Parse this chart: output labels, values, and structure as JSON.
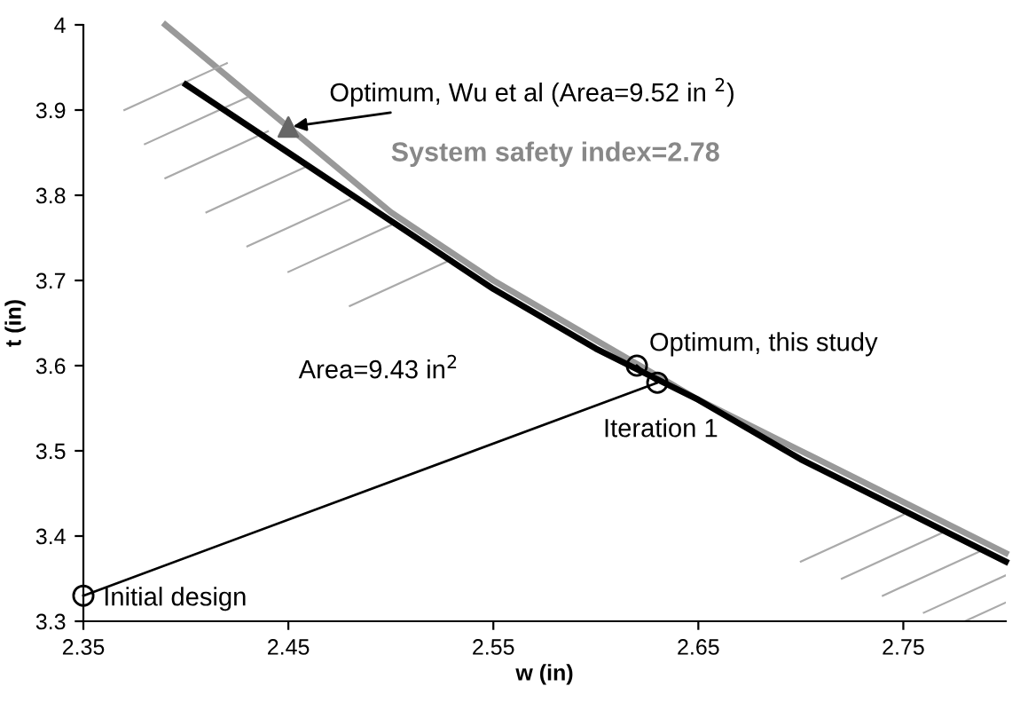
{
  "chart_data": {
    "type": "line",
    "xlabel": "w (in)",
    "ylabel": "t (in)",
    "xlim": [
      2.35,
      2.8
    ],
    "ylim": [
      3.3,
      4.0
    ],
    "xticks": [
      2.35,
      2.45,
      2.55,
      2.65,
      2.75
    ],
    "yticks": [
      3.3,
      3.4,
      3.5,
      3.6,
      3.7,
      3.8,
      3.9,
      4
    ],
    "grid": false,
    "legend": false,
    "series": [
      {
        "color": "#999999",
        "x": [
          2.39,
          2.45,
          2.5,
          2.55,
          2.6,
          2.65,
          2.7,
          2.75,
          2.8
        ],
        "values": [
          4.0,
          3.88,
          3.78,
          3.7,
          3.63,
          3.56,
          3.5,
          3.44,
          3.38
        ],
        "marker": "none"
      },
      {
        "color": "#000000",
        "x": [
          2.4,
          2.45,
          2.5,
          2.55,
          2.6,
          2.65,
          2.7,
          2.75,
          2.8
        ],
        "values": [
          3.93,
          3.85,
          3.77,
          3.69,
          3.62,
          3.56,
          3.49,
          3.43,
          3.37
        ],
        "marker": "none"
      },
      {
        "color": "#000000",
        "x": [
          2.35,
          2.63,
          2.62
        ],
        "values": [
          3.33,
          3.58,
          3.6
        ],
        "marker": "circle"
      },
      {
        "type": "scatter",
        "color": "#666666",
        "x": [
          2.45
        ],
        "values": [
          3.88
        ],
        "marker": "triangle"
      }
    ],
    "annotations": [
      {
        "text": "Optimum, Wu et al (Area=9.52 in $^{2}$)",
        "x": 2.45,
        "y": 3.88
      },
      "System safety index=2.78",
      "Area=9.43 in$^{2}$",
      {
        "text": "Optimum, this study",
        "x": 2.62,
        "y": 3.6
      },
      {
        "text": "Iteration 1",
        "x": 2.63,
        "y": 3.58
      },
      {
        "text": "Initial design",
        "x": 2.35,
        "y": 3.33
      }
    ]
  }
}
